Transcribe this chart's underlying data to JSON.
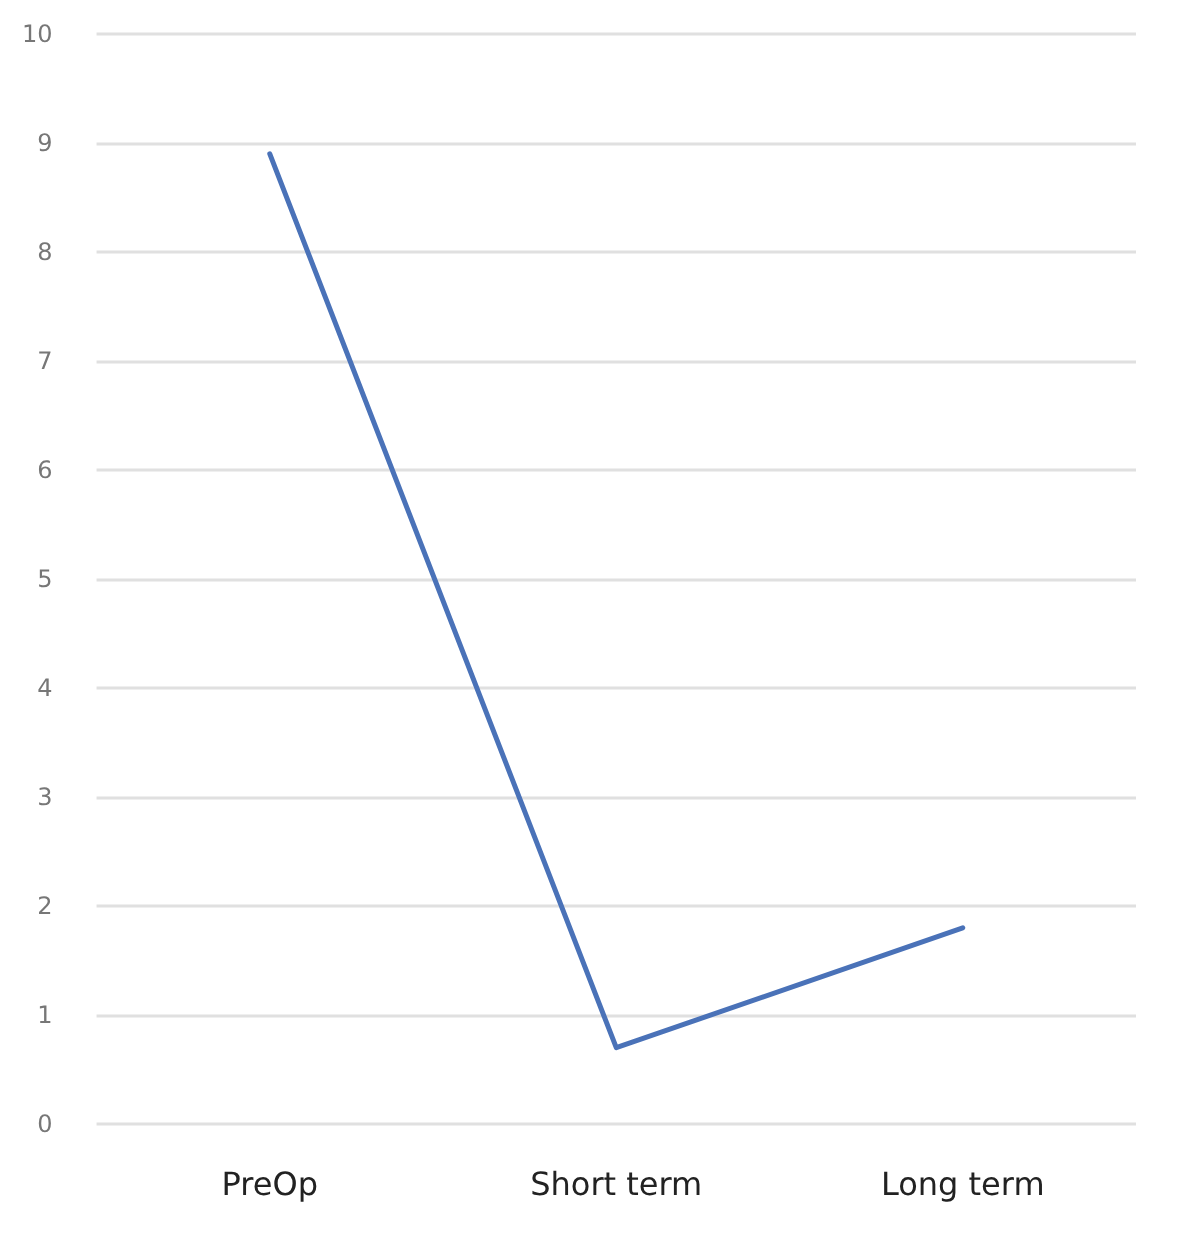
{
  "chart_data": {
    "type": "line",
    "categories": [
      "PreOp",
      "Short term",
      "Long term"
    ],
    "series": [
      {
        "color": "#4a72b8",
        "values": [
          8.9,
          0.7,
          1.8
        ]
      }
    ],
    "ylim": [
      0,
      10
    ],
    "yticks": [
      0,
      1,
      2,
      3,
      4,
      5,
      6,
      7,
      8,
      9,
      10
    ],
    "grid": "y",
    "marker": "none",
    "line_style": "solid"
  }
}
